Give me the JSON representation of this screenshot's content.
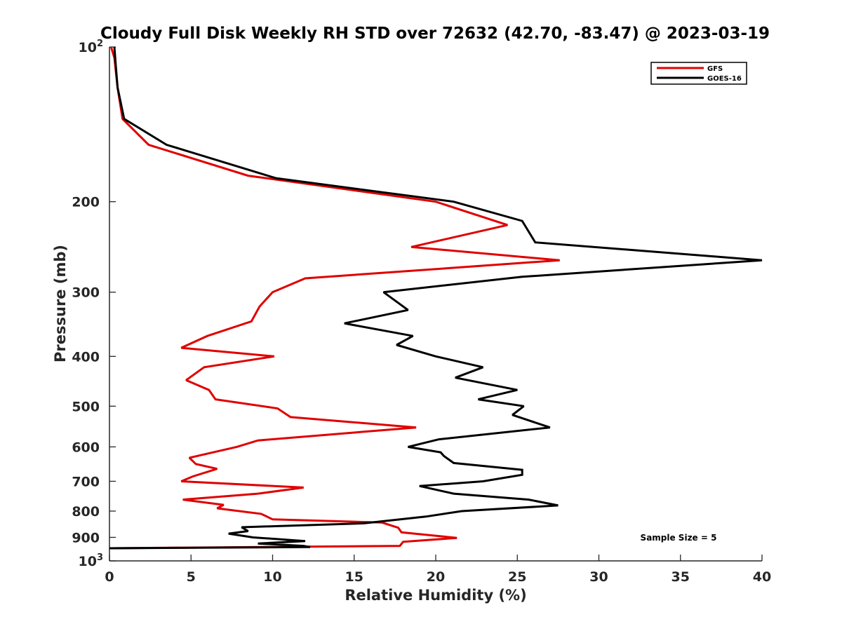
{
  "chart_data": {
    "type": "line",
    "title": "Cloudy Full Disk Weekly RH STD over 72632 (42.70, -83.47) @ 2023-03-19",
    "xlabel": "Relative Humidity (%)",
    "ylabel": "Pressure (mb)",
    "xlim": [
      0,
      40
    ],
    "ylim": [
      100,
      1000
    ],
    "y_scale": "log",
    "y_reversed": true,
    "grid": false,
    "legend_position": "top-right",
    "x_ticks": [
      "0",
      "5",
      "10",
      "15",
      "20",
      "25",
      "30",
      "35",
      "40"
    ],
    "x_tick_values": [
      0,
      5,
      10,
      15,
      20,
      25,
      30,
      35,
      40
    ],
    "y_ticks": [
      {
        "value": 100,
        "base": "10",
        "exp": "2"
      },
      {
        "value": 200,
        "label": "200"
      },
      {
        "value": 300,
        "label": "300"
      },
      {
        "value": 400,
        "label": "400"
      },
      {
        "value": 500,
        "label": "500"
      },
      {
        "value": 600,
        "label": "600"
      },
      {
        "value": 700,
        "label": "700"
      },
      {
        "value": 800,
        "label": "800"
      },
      {
        "value": 900,
        "label": "900"
      },
      {
        "value": 1000,
        "base": "10",
        "exp": "3"
      }
    ],
    "annotation": "Sample Size = 5",
    "series": [
      {
        "name": "GFS",
        "color": "#e00000",
        "points": [
          [
            0.1,
            100
          ],
          [
            0.3,
            105
          ],
          [
            0.5,
            120
          ],
          [
            0.8,
            138
          ],
          [
            2.4,
            155
          ],
          [
            8.5,
            178
          ],
          [
            20.0,
            200
          ],
          [
            24.4,
            222
          ],
          [
            18.5,
            245
          ],
          [
            27.6,
            260
          ],
          [
            12.0,
            282
          ],
          [
            10.0,
            300
          ],
          [
            9.2,
            320
          ],
          [
            8.7,
            342
          ],
          [
            6.0,
            365
          ],
          [
            4.4,
            385
          ],
          [
            10.1,
            400
          ],
          [
            5.8,
            420
          ],
          [
            4.7,
            445
          ],
          [
            6.1,
            465
          ],
          [
            6.5,
            485
          ],
          [
            10.3,
            505
          ],
          [
            11.1,
            525
          ],
          [
            18.8,
            550
          ],
          [
            9.1,
            583
          ],
          [
            7.8,
            600
          ],
          [
            4.9,
            630
          ],
          [
            5.3,
            648
          ],
          [
            6.6,
            662
          ],
          [
            5.1,
            685
          ],
          [
            4.4,
            700
          ],
          [
            11.9,
            720
          ],
          [
            9.1,
            740
          ],
          [
            4.5,
            760
          ],
          [
            7.0,
            778
          ],
          [
            6.6,
            790
          ],
          [
            9.3,
            810
          ],
          [
            10.0,
            830
          ],
          [
            16.7,
            842
          ],
          [
            17.7,
            862
          ],
          [
            17.9,
            880
          ],
          [
            21.3,
            902
          ],
          [
            18.0,
            918
          ],
          [
            17.8,
            935
          ],
          [
            0.0,
            945
          ]
        ]
      },
      {
        "name": "GOES-16",
        "color": "#000000",
        "points": [
          [
            0.3,
            100
          ],
          [
            0.4,
            110
          ],
          [
            0.5,
            120
          ],
          [
            0.9,
            138
          ],
          [
            3.5,
            155
          ],
          [
            10.2,
            180
          ],
          [
            21.1,
            200
          ],
          [
            25.3,
            218
          ],
          [
            26.1,
            240
          ],
          [
            40.0,
            260
          ],
          [
            25.3,
            280
          ],
          [
            16.8,
            300
          ],
          [
            18.3,
            325
          ],
          [
            14.4,
            345
          ],
          [
            18.6,
            365
          ],
          [
            17.6,
            380
          ],
          [
            20.0,
            400
          ],
          [
            22.9,
            420
          ],
          [
            21.2,
            440
          ],
          [
            25.0,
            465
          ],
          [
            22.6,
            485
          ],
          [
            25.4,
            500
          ],
          [
            24.7,
            520
          ],
          [
            27.0,
            550
          ],
          [
            20.2,
            580
          ],
          [
            18.3,
            600
          ],
          [
            20.3,
            615
          ],
          [
            20.5,
            625
          ],
          [
            21.1,
            645
          ],
          [
            25.3,
            665
          ],
          [
            25.3,
            680
          ],
          [
            22.9,
            700
          ],
          [
            19.0,
            715
          ],
          [
            21.1,
            740
          ],
          [
            25.7,
            760
          ],
          [
            27.5,
            780
          ],
          [
            21.6,
            800
          ],
          [
            19.4,
            820
          ],
          [
            15.6,
            845
          ],
          [
            8.1,
            860
          ],
          [
            8.5,
            875
          ],
          [
            7.3,
            885
          ],
          [
            8.8,
            900
          ],
          [
            12.0,
            915
          ],
          [
            9.1,
            925
          ],
          [
            11.9,
            935
          ],
          [
            12.3,
            940
          ],
          [
            0.0,
            945
          ]
        ]
      }
    ]
  }
}
